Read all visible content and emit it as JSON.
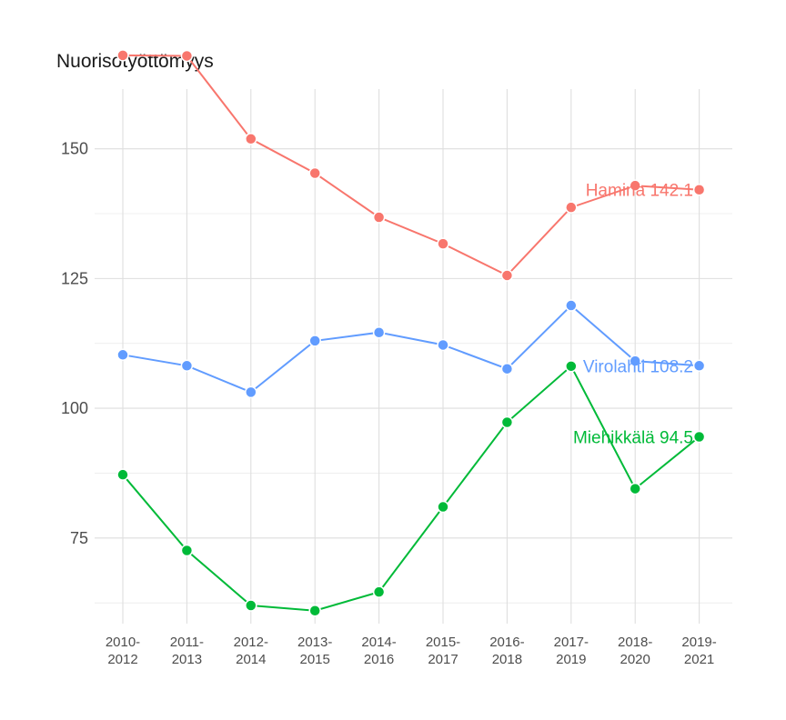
{
  "chart_data": {
    "type": "line",
    "title": "Nuorisotyöttömyys",
    "xlabel": "",
    "ylabel": "",
    "categories": [
      [
        "2010-",
        "2012"
      ],
      [
        "2011-",
        "2013"
      ],
      [
        "2012-",
        "2014"
      ],
      [
        "2013-",
        "2015"
      ],
      [
        "2014-",
        "2016"
      ],
      [
        "2015-",
        "2017"
      ],
      [
        "2016-",
        "2018"
      ],
      [
        "2017-",
        "2019"
      ],
      [
        "2018-",
        "2020"
      ],
      [
        "2019-",
        "2021"
      ]
    ],
    "yticks": [
      75,
      100,
      125,
      150
    ],
    "ylim": [
      58.5,
      161.5
    ],
    "grid": true,
    "series": [
      {
        "name": "Hamina",
        "color": "#F8766D",
        "end_label": "Hamina 142.1",
        "values": [
          168.0,
          167.9,
          151.9,
          145.3,
          136.8,
          131.7,
          125.6,
          138.7,
          142.9,
          142.1
        ]
      },
      {
        "name": "Virolahti",
        "color": "#619CFF",
        "end_label": "Virolahti 108.2",
        "values": [
          110.3,
          108.2,
          103.1,
          113.0,
          114.6,
          112.2,
          107.6,
          119.8,
          109.1,
          108.2
        ]
      },
      {
        "name": "Miehikkälä",
        "color": "#00BA38",
        "end_label": "Miehikkälä 94.5",
        "values": [
          87.2,
          72.6,
          62.0,
          61.0,
          64.6,
          81.0,
          97.3,
          108.1,
          84.5,
          94.5
        ]
      }
    ]
  }
}
